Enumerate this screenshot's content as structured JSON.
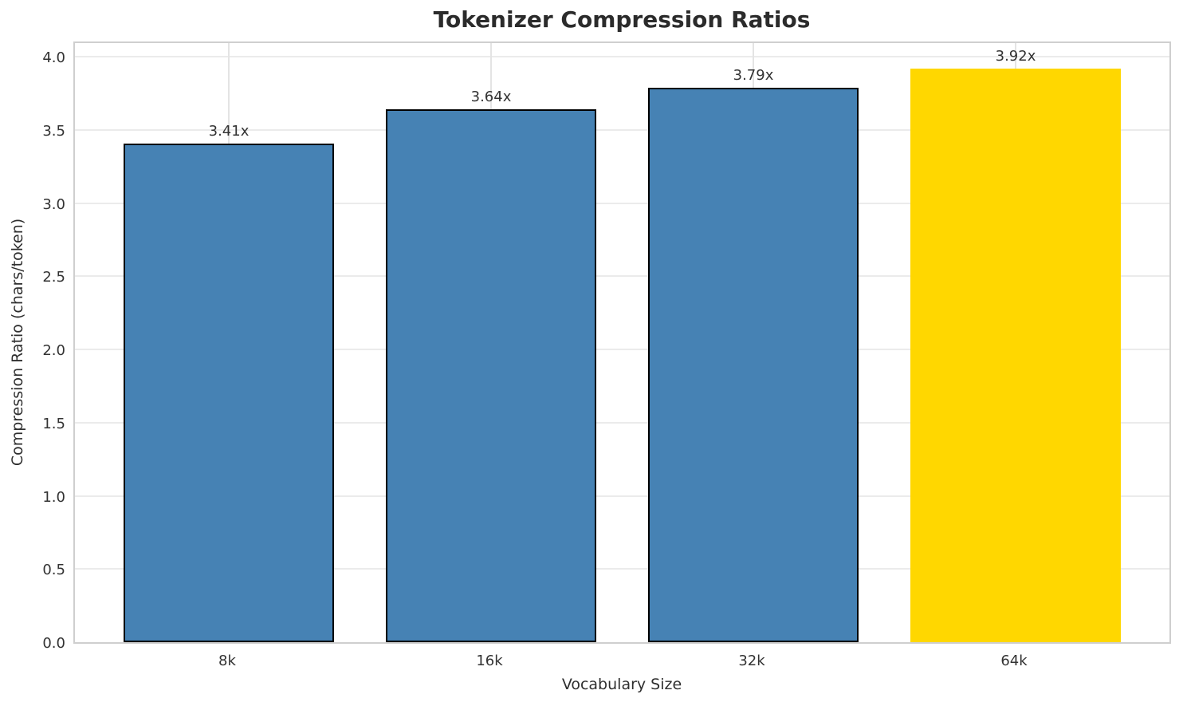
{
  "chart_data": {
    "type": "bar",
    "title": "Tokenizer Compression Ratios",
    "xlabel": "Vocabulary Size",
    "ylabel": "Compression Ratio (chars/token)",
    "categories": [
      "8k",
      "16k",
      "32k",
      "64k"
    ],
    "values": [
      3.41,
      3.64,
      3.79,
      3.92
    ],
    "bar_labels": [
      "3.41x",
      "3.64x",
      "3.79x",
      "3.92x"
    ],
    "ylim": [
      0,
      4.116
    ],
    "yticks": [
      0.0,
      0.5,
      1.0,
      1.5,
      2.0,
      2.5,
      3.0,
      3.5,
      4.0
    ],
    "ytick_labels": [
      "0.0",
      "0.5",
      "1.0",
      "1.5",
      "2.0",
      "2.5",
      "3.0",
      "3.5",
      "4.0"
    ],
    "grid": true,
    "legend": null,
    "colors": {
      "bar_colors": [
        "#4682B4",
        "#4682B4",
        "#4682B4",
        "#FFD700"
      ],
      "bar_edge_color": "#000000",
      "bar_edge_widths": [
        2,
        2,
        2,
        0
      ],
      "grid_color": "#ebebeb",
      "spine_color": "#cfcfcf",
      "tick_text_color": "#333333",
      "title_text_color": "#2b2b2b",
      "background": "#ffffff"
    }
  }
}
